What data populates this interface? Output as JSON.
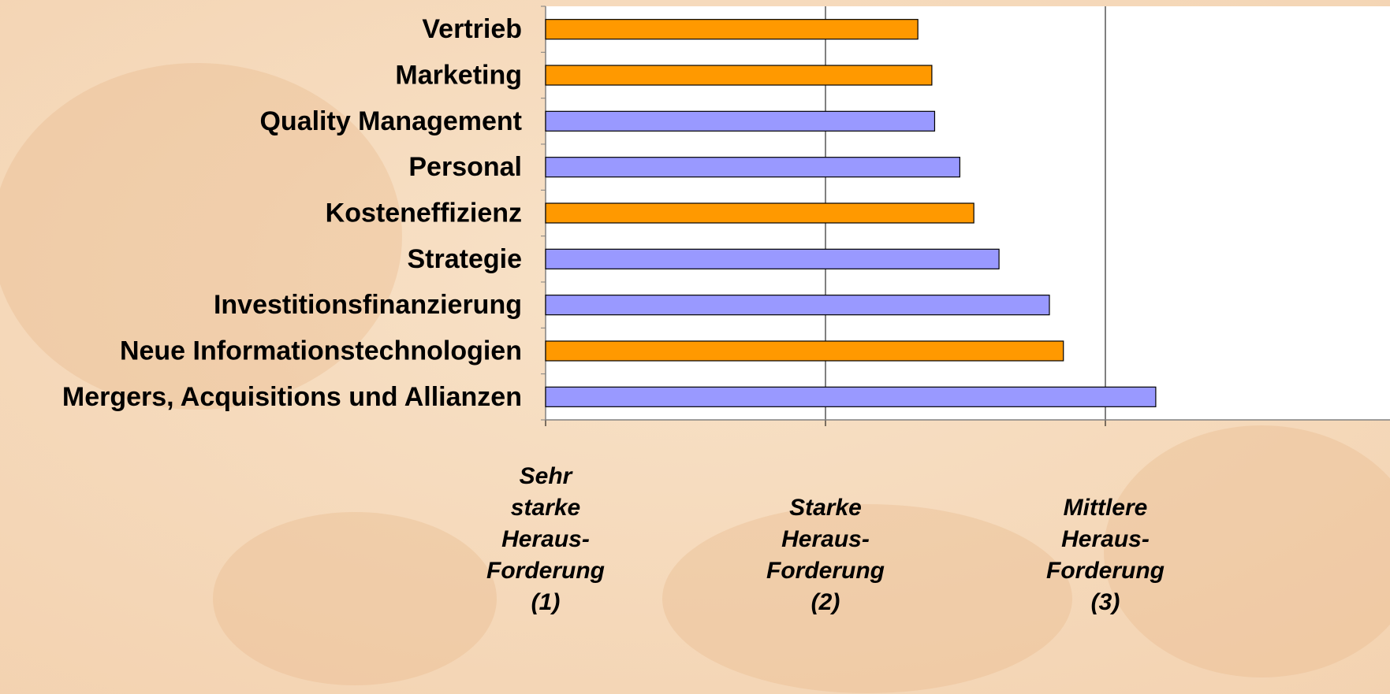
{
  "chart_data": {
    "type": "bar",
    "orientation": "horizontal",
    "categories": [
      "Vertrieb",
      "Marketing",
      "Quality Management",
      "Personal",
      "Kosteneffizienz",
      "Strategie",
      "Investitionsfinanzierung",
      "Neue Informationstechnologien",
      "Mergers, Acquisitions und Allianzen"
    ],
    "values": [
      2.33,
      2.38,
      2.39,
      2.48,
      2.53,
      2.62,
      2.8,
      2.85,
      3.18
    ],
    "colors": [
      "#ff9900",
      "#ff9900",
      "#9999ff",
      "#9999ff",
      "#ff9900",
      "#9999ff",
      "#9999ff",
      "#ff9900",
      "#9999ff"
    ],
    "xlim": [
      1,
      4
    ],
    "xticks": [
      {
        "value": 1,
        "label": "Sehr\nstarke\nHeraus-\nForderung\n(1)"
      },
      {
        "value": 2,
        "label": "Starke\nHeraus-\nForderung\n(2)"
      },
      {
        "value": 3,
        "label": "Mittlere\nHeraus-\nForderung\n(3)"
      }
    ],
    "grid": true
  }
}
